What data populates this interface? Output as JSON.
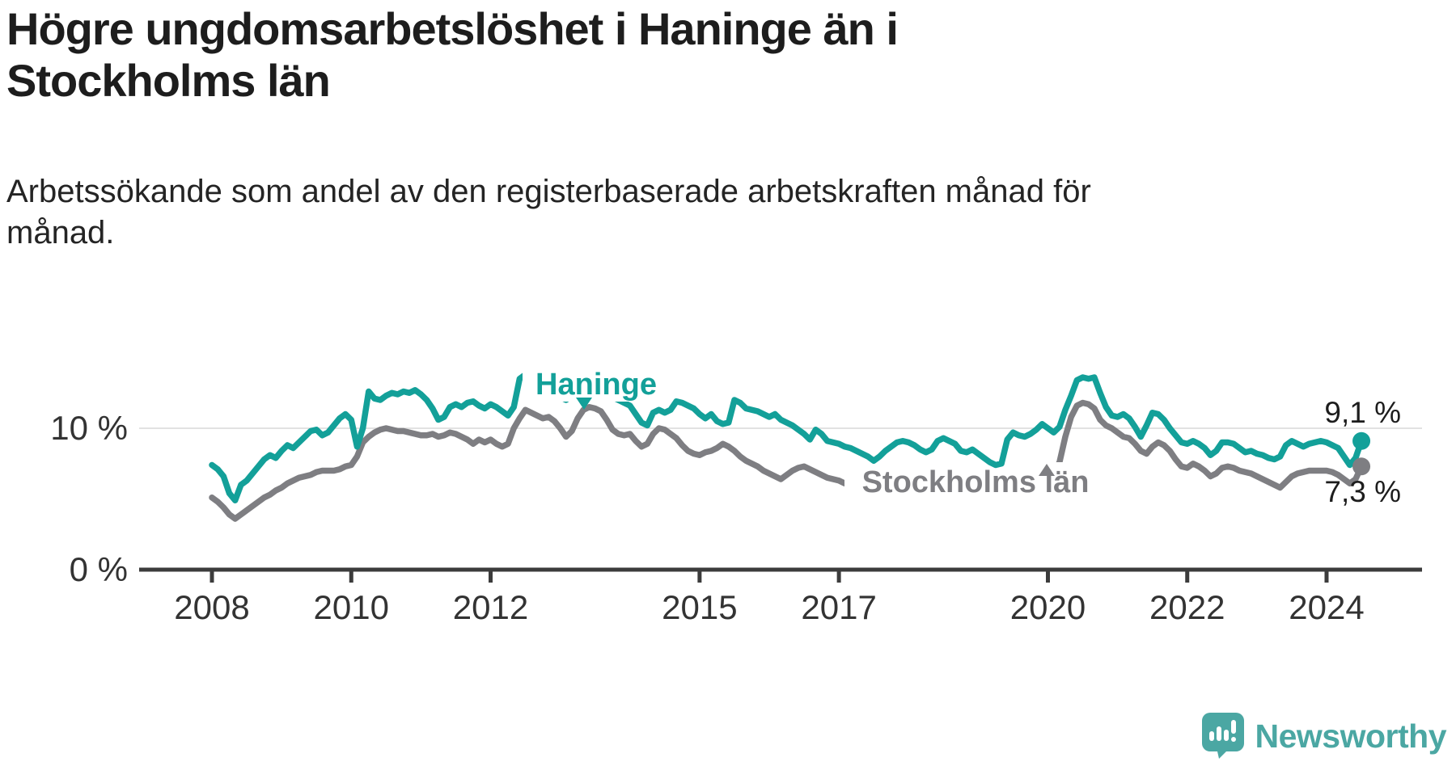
{
  "title": {
    "line1": "Högre ungdomsarbetslöshet i Haninge än i",
    "line2": "Stockholms län"
  },
  "subtitle": "Arbetssökande som andel av den registerbaserade arbetskraften månad för månad.",
  "chart_data": {
    "type": "line",
    "unit": "%",
    "frequency": "monthly",
    "x_start": "2008-01",
    "x_end": "2024-07",
    "x_tick_labels": [
      "2008",
      "2010",
      "2012",
      "2015",
      "2017",
      "2020",
      "2022",
      "2024"
    ],
    "x_tick_months": [
      0,
      24,
      48,
      84,
      108,
      144,
      168,
      192
    ],
    "y_tick_labels": [
      "0 %",
      "10 %"
    ],
    "ylim": [
      0,
      14.5
    ],
    "gridline_at": 10,
    "legend_position": "inline-labels",
    "series": [
      {
        "name": "Haninge",
        "color": "#13A099",
        "end_label": "9,1 %",
        "last_value": 9.1,
        "values": [
          7.4,
          7.1,
          6.6,
          5.4,
          4.9,
          6.0,
          6.3,
          6.8,
          7.3,
          7.8,
          8.1,
          7.9,
          8.4,
          8.8,
          8.6,
          9.0,
          9.4,
          9.8,
          9.9,
          9.5,
          9.7,
          10.2,
          10.7,
          11.0,
          10.6,
          8.7,
          10.0,
          12.6,
          12.1,
          12.0,
          12.3,
          12.5,
          12.4,
          12.6,
          12.5,
          12.7,
          12.4,
          12.0,
          11.4,
          10.6,
          10.8,
          11.5,
          11.7,
          11.5,
          11.8,
          11.9,
          11.6,
          11.4,
          11.7,
          11.5,
          11.2,
          10.9,
          11.5,
          13.5,
          13.8,
          13.3,
          13.0,
          12.8,
          12.6,
          12.4,
          12.2,
          12.0,
          12.3,
          12.6,
          13.0,
          13.5,
          13.3,
          12.9,
          12.5,
          12.2,
          12.0,
          11.8,
          11.6,
          11.0,
          10.4,
          10.2,
          11.1,
          11.3,
          11.1,
          11.3,
          11.9,
          11.8,
          11.6,
          11.4,
          11.0,
          10.7,
          11.0,
          10.5,
          10.3,
          10.4,
          12.0,
          11.8,
          11.4,
          11.3,
          11.2,
          11.0,
          10.8,
          11.0,
          10.6,
          10.4,
          10.2,
          9.9,
          9.6,
          9.2,
          9.9,
          9.6,
          9.1,
          9.0,
          8.9,
          8.7,
          8.6,
          8.4,
          8.2,
          8.0,
          7.7,
          8.0,
          8.4,
          8.7,
          9.0,
          9.1,
          9.0,
          8.8,
          8.5,
          8.3,
          8.5,
          9.1,
          9.3,
          9.1,
          8.9,
          8.4,
          8.3,
          8.5,
          8.2,
          7.9,
          7.6,
          7.4,
          7.5,
          9.2,
          9.7,
          9.5,
          9.4,
          9.6,
          9.9,
          10.3,
          10.0,
          9.7,
          10.1,
          11.3,
          12.3,
          13.4,
          13.6,
          13.5,
          13.6,
          12.5,
          11.5,
          10.9,
          10.8,
          11.0,
          10.7,
          10.1,
          9.4,
          10.2,
          11.1,
          11.0,
          10.6,
          10.0,
          9.5,
          9.0,
          8.9,
          9.1,
          8.9,
          8.6,
          8.1,
          8.4,
          9.0,
          9.0,
          8.9,
          8.6,
          8.3,
          8.4,
          8.2,
          8.1,
          7.9,
          7.8,
          8.0,
          8.8,
          9.1,
          8.9,
          8.7,
          8.9,
          9.0,
          9.1,
          9.0,
          8.8,
          8.6,
          8.0,
          7.4,
          7.9,
          9.1
        ]
      },
      {
        "name": "Stockholms län",
        "color": "#7E7E82",
        "end_label": "7,3 %",
        "last_value": 7.3,
        "values": [
          5.1,
          4.8,
          4.4,
          3.9,
          3.6,
          3.9,
          4.2,
          4.5,
          4.8,
          5.1,
          5.3,
          5.6,
          5.8,
          6.1,
          6.3,
          6.5,
          6.6,
          6.7,
          6.9,
          7.0,
          7.0,
          7.0,
          7.1,
          7.3,
          7.4,
          8.0,
          9.0,
          9.4,
          9.7,
          9.9,
          10.0,
          9.9,
          9.8,
          9.8,
          9.7,
          9.6,
          9.5,
          9.5,
          9.6,
          9.4,
          9.5,
          9.7,
          9.6,
          9.4,
          9.2,
          8.9,
          9.2,
          9.0,
          9.2,
          8.9,
          8.7,
          8.9,
          10.0,
          10.7,
          11.3,
          11.1,
          10.9,
          10.7,
          10.8,
          10.5,
          10.0,
          9.4,
          9.8,
          10.7,
          11.3,
          11.5,
          11.4,
          11.2,
          10.6,
          9.9,
          9.6,
          9.5,
          9.6,
          9.1,
          8.7,
          8.9,
          9.6,
          10.0,
          9.9,
          9.6,
          9.3,
          8.8,
          8.4,
          8.2,
          8.1,
          8.3,
          8.4,
          8.6,
          8.9,
          8.7,
          8.4,
          8.0,
          7.7,
          7.5,
          7.3,
          7.0,
          6.8,
          6.6,
          6.4,
          6.7,
          7.0,
          7.2,
          7.3,
          7.1,
          6.9,
          6.7,
          6.5,
          6.4,
          6.3,
          6.1,
          6.0,
          5.9,
          6.0,
          6.3,
          6.6,
          6.7,
          6.5,
          6.3,
          6.2,
          6.1,
          6.0,
          5.9,
          5.8,
          5.9,
          6.1,
          6.5,
          6.8,
          6.7,
          6.5,
          6.3,
          6.2,
          6.1,
          6.2,
          6.1,
          6.0,
          6.1,
          6.3,
          6.8,
          7.2,
          7.3,
          7.1,
          7.0,
          7.0,
          7.1,
          7.0,
          6.9,
          7.6,
          9.4,
          10.8,
          11.6,
          11.8,
          11.7,
          11.4,
          10.6,
          10.2,
          10.0,
          9.7,
          9.4,
          9.3,
          8.9,
          8.4,
          8.2,
          8.7,
          9.0,
          8.8,
          8.4,
          7.8,
          7.3,
          7.2,
          7.5,
          7.3,
          7.0,
          6.6,
          6.8,
          7.2,
          7.3,
          7.2,
          7.0,
          6.9,
          6.8,
          6.6,
          6.4,
          6.2,
          6.0,
          5.8,
          6.2,
          6.6,
          6.8,
          6.9,
          7.0,
          7.0,
          7.0,
          7.0,
          6.9,
          6.7,
          6.4,
          6.1,
          6.4,
          7.3
        ]
      }
    ]
  },
  "logo": {
    "text": "Newsworthy",
    "color": "#4BA7A3",
    "icon": "newsworthy-chart-bubble-icon"
  }
}
